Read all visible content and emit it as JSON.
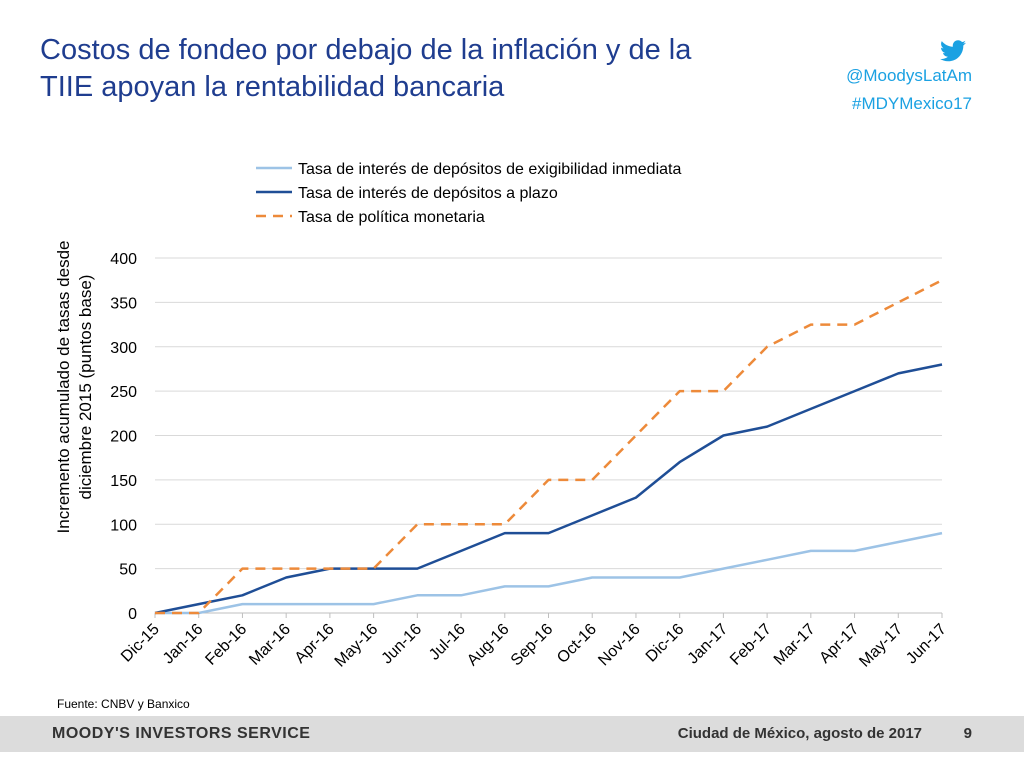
{
  "slide": {
    "title_line1": "Costos de fondeo por debajo de la inflación y de la",
    "title_line2": "TIIE apoyan la rentabilidad bancaria",
    "handle": "@MoodysLatAm",
    "hashtag": "#MDYMexico17",
    "source": "Fuente: CNBV y Banxico",
    "brand": "MOODY'S INVESTORS SERVICE",
    "place_date": "Ciudad de México, agosto de 2017",
    "page_number": "9"
  },
  "colors": {
    "title": "#1f3d8f",
    "twitter": "#1ba1e2",
    "footer_bg": "#dcdcdc"
  },
  "chart_data": {
    "type": "line",
    "ylabel": "Incremento acumulado de tasas desde diciembre 2015 (puntos base)",
    "ylabel_line1": "Incremento acumulado de tasas desde",
    "ylabel_line2": "diciembre 2015 (puntos base)",
    "xlabel": "",
    "ylim": [
      0,
      400
    ],
    "yticks": [
      0,
      50,
      100,
      150,
      200,
      250,
      300,
      350,
      400
    ],
    "grid": true,
    "legend_position": "top",
    "categories": [
      "Dic-15",
      "Jan-16",
      "Feb-16",
      "Mar-16",
      "Apr-16",
      "May-16",
      "Jun-16",
      "Jul-16",
      "Aug-16",
      "Sep-16",
      "Oct-16",
      "Nov-16",
      "Dic-16",
      "Jan-17",
      "Feb-17",
      "Mar-17",
      "Apr-17",
      "May-17",
      "Jun-17"
    ],
    "series": [
      {
        "name": "Tasa de interés de depósitos de exigibilidad inmediata",
        "color": "#9dc3e6",
        "dash": "solid",
        "values": [
          0,
          0,
          10,
          10,
          10,
          10,
          20,
          20,
          30,
          30,
          40,
          40,
          40,
          50,
          60,
          70,
          70,
          80,
          90
        ]
      },
      {
        "name": "Tasa de interés de depósitos a plazo",
        "color": "#1f4e96",
        "dash": "solid",
        "values": [
          0,
          10,
          20,
          40,
          50,
          50,
          50,
          70,
          90,
          90,
          110,
          130,
          170,
          200,
          210,
          230,
          250,
          270,
          280
        ]
      },
      {
        "name": "Tasa de política monetaria",
        "color": "#ed8a3a",
        "dash": "dashed",
        "values": [
          0,
          0,
          50,
          50,
          50,
          50,
          100,
          100,
          100,
          150,
          150,
          200,
          250,
          250,
          300,
          325,
          325,
          350,
          375
        ]
      }
    ]
  }
}
